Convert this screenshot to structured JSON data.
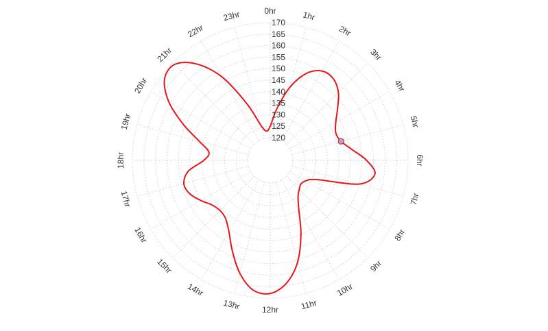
{
  "chart_data": {
    "type": "line",
    "coordinate_system": "polar",
    "angular_axis": {
      "labels": [
        "0hr",
        "1hr",
        "2hr",
        "3hr",
        "4hr",
        "5hr",
        "6hr",
        "7hr",
        "8hr",
        "9hr",
        "10hr",
        "11hr",
        "12hr",
        "13hr",
        "14hr",
        "15hr",
        "16hr",
        "17hr",
        "18hr",
        "19hr",
        "20hr",
        "21hr",
        "22hr",
        "23hr"
      ],
      "direction": "clockwise",
      "zero": "top"
    },
    "radial_axis": {
      "range": [
        120,
        170
      ],
      "ticks": [
        120,
        125,
        130,
        135,
        140,
        145,
        150,
        155,
        160,
        165,
        170
      ],
      "tick_labels": [
        "120",
        "125",
        "130",
        "135",
        "140",
        "145",
        "150",
        "155",
        "160",
        "165",
        "170"
      ]
    },
    "grid": true,
    "series": [
      {
        "name": "",
        "color": "#e8141a",
        "points": [
          {
            "theta": 0,
            "r": 125
          },
          {
            "theta": 0.5,
            "r": 133
          },
          {
            "theta": 1,
            "r": 143
          },
          {
            "theta": 1.5,
            "r": 151
          },
          {
            "theta": 2,
            "r": 155
          },
          {
            "theta": 2.5,
            "r": 155
          },
          {
            "theta": 3,
            "r": 152
          },
          {
            "theta": 3.5,
            "r": 147
          },
          {
            "theta": 4,
            "r": 143
          },
          {
            "theta": 4.5,
            "r": 141
          },
          {
            "theta": 5,
            "r": 142
          },
          {
            "theta": 5.5,
            "r": 146
          },
          {
            "theta": 6,
            "r": 152
          },
          {
            "theta": 6.5,
            "r": 156
          },
          {
            "theta": 7,
            "r": 150
          },
          {
            "theta": 7.5,
            "r": 132
          },
          {
            "theta": 8,
            "r": 128
          },
          {
            "theta": 8.5,
            "r": 127
          },
          {
            "theta": 9,
            "r": 128
          },
          {
            "theta": 9.5,
            "r": 130
          },
          {
            "theta": 10,
            "r": 135
          },
          {
            "theta": 10.5,
            "r": 145
          },
          {
            "theta": 11,
            "r": 156
          },
          {
            "theta": 11.5,
            "r": 164
          },
          {
            "theta": 12,
            "r": 168
          },
          {
            "theta": 12.5,
            "r": 167
          },
          {
            "theta": 13,
            "r": 161
          },
          {
            "theta": 13.5,
            "r": 153
          },
          {
            "theta": 14,
            "r": 146
          },
          {
            "theta": 14.5,
            "r": 142
          },
          {
            "theta": 15,
            "r": 141
          },
          {
            "theta": 15.5,
            "r": 142
          },
          {
            "theta": 16,
            "r": 145
          },
          {
            "theta": 16.5,
            "r": 148
          },
          {
            "theta": 17,
            "r": 149
          },
          {
            "theta": 17.5,
            "r": 146
          },
          {
            "theta": 18,
            "r": 139
          },
          {
            "theta": 18.5,
            "r": 137
          },
          {
            "theta": 19,
            "r": 142
          },
          {
            "theta": 19.5,
            "r": 151
          },
          {
            "theta": 20,
            "r": 161
          },
          {
            "theta": 20.5,
            "r": 168
          },
          {
            "theta": 21,
            "r": 169
          },
          {
            "theta": 21.5,
            "r": 163
          },
          {
            "theta": 22,
            "r": 152
          },
          {
            "theta": 22.5,
            "r": 137
          },
          {
            "theta": 23,
            "r": 126
          },
          {
            "theta": 23.5,
            "r": 123
          },
          {
            "theta": 24,
            "r": 125
          }
        ]
      }
    ],
    "highlight_point": {
      "theta": 5,
      "r": 142
    }
  }
}
